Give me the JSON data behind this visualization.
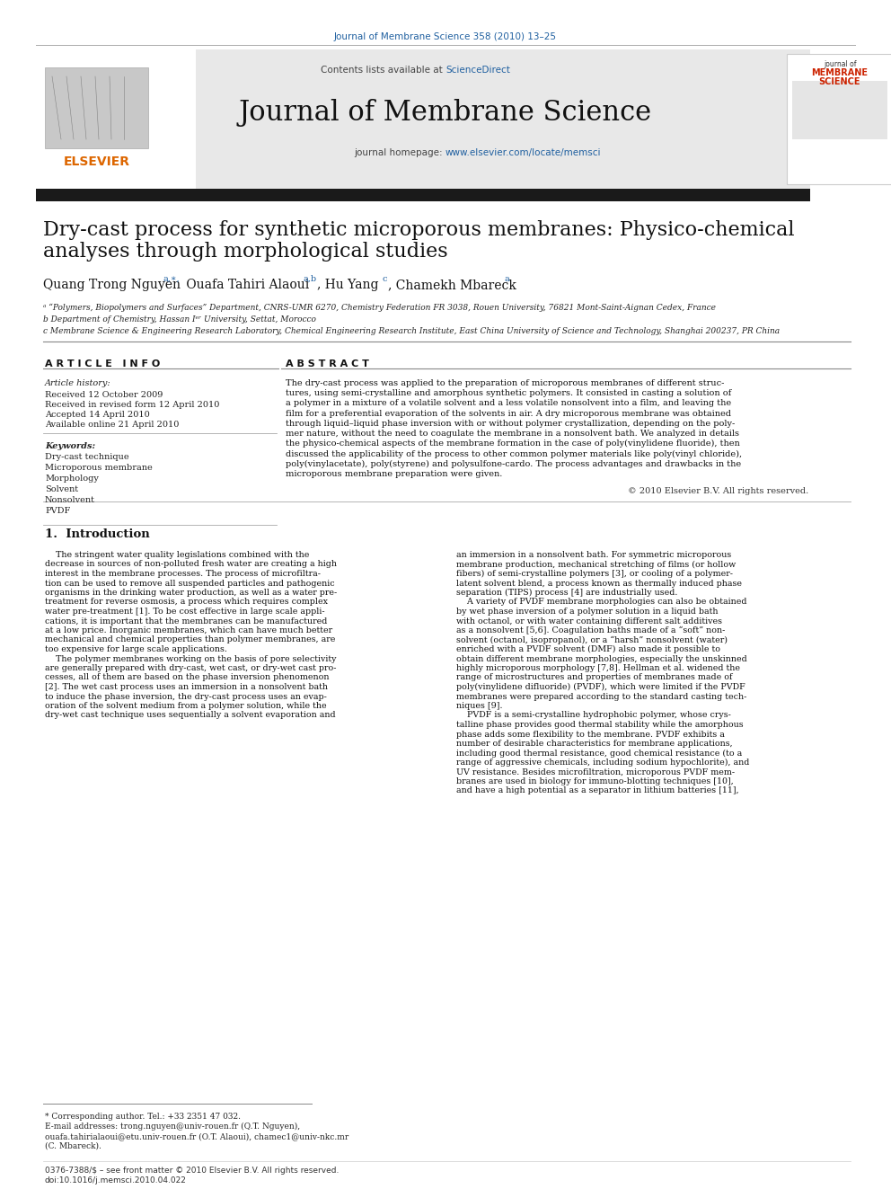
{
  "journal_citation": "Journal of Membrane Science 358 (2010) 13–25",
  "journal_name": "Journal of Membrane Science",
  "contents_text": "Contents lists available at ",
  "sciencedirect_text": "ScienceDirect",
  "homepage_text": "journal homepage: ",
  "homepage_url": "www.elsevier.com/locate/memsci",
  "paper_title_line1": "Dry-cast process for synthetic microporous membranes: Physico-chemical",
  "paper_title_line2": "analyses through morphological studies",
  "affil_a": "ᵃ “Polymers, Biopolymers and Surfaces” Department, CNRS-UMR 6270, Chemistry Federation FR 3038, Rouen University, 76821 Mont-Saint-Aignan Cedex, France",
  "affil_b": "b Department of Chemistry, Hassan Iᵉʳ University, Settat, Morocco",
  "affil_c": "c Membrane Science & Engineering Research Laboratory, Chemical Engineering Research Institute, East China University of Science and Technology, Shanghai 200237, PR China",
  "article_info_title": "A R T I C L E   I N F O",
  "abstract_title": "A B S T R A C T",
  "article_history_title": "Article history:",
  "received": "Received 12 October 2009",
  "received_revised": "Received in revised form 12 April 2010",
  "accepted": "Accepted 14 April 2010",
  "available": "Available online 21 April 2010",
  "keywords_title": "Keywords:",
  "keywords": [
    "Dry-cast technique",
    "Microporous membrane",
    "Morphology",
    "Solvent",
    "Nonsolvent",
    "PVDF"
  ],
  "abstract_lines": [
    "The dry-cast process was applied to the preparation of microporous membranes of different struc-",
    "tures, using semi-crystalline and amorphous synthetic polymers. It consisted in casting a solution of",
    "a polymer in a mixture of a volatile solvent and a less volatile nonsolvent into a film, and leaving the",
    "film for a preferential evaporation of the solvents in air. A dry microporous membrane was obtained",
    "through liquid–liquid phase inversion with or without polymer crystallization, depending on the poly-",
    "mer nature, without the need to coagulate the membrane in a nonsolvent bath. We analyzed in details",
    "the physico-chemical aspects of the membrane formation in the case of poly(vinylidene fluoride), then",
    "discussed the applicability of the process to other common polymer materials like poly(vinyl chloride),",
    "poly(vinylacetate), poly(styrene) and polysulfone-cardo. The process advantages and drawbacks in the",
    "microporous membrane preparation were given."
  ],
  "copyright": "© 2010 Elsevier B.V. All rights reserved.",
  "intro_title": "1.  Introduction",
  "intro_col1_lines": [
    "    The stringent water quality legislations combined with the",
    "decrease in sources of non-polluted fresh water are creating a high",
    "interest in the membrane processes. The process of microfiltra-",
    "tion can be used to remove all suspended particles and pathogenic",
    "organisms in the drinking water production, as well as a water pre-",
    "treatment for reverse osmosis, a process which requires complex",
    "water pre-treatment [1]. To be cost effective in large scale appli-",
    "cations, it is important that the membranes can be manufactured",
    "at a low price. Inorganic membranes, which can have much better",
    "mechanical and chemical properties than polymer membranes, are",
    "too expensive for large scale applications.",
    "    The polymer membranes working on the basis of pore selectivity",
    "are generally prepared with dry-cast, wet cast, or dry-wet cast pro-",
    "cesses, all of them are based on the phase inversion phenomenon",
    "[2]. The wet cast process uses an immersion in a nonsolvent bath",
    "to induce the phase inversion, the dry-cast process uses an evap-",
    "oration of the solvent medium from a polymer solution, while the",
    "dry-wet cast technique uses sequentially a solvent evaporation and"
  ],
  "intro_col2_lines": [
    "an immersion in a nonsolvent bath. For symmetric microporous",
    "membrane production, mechanical stretching of films (or hollow",
    "fibers) of semi-crystalline polymers [3], or cooling of a polymer-",
    "latent solvent blend, a process known as thermally induced phase",
    "separation (TIPS) process [4] are industrially used.",
    "    A variety of PVDF membrane morphologies can also be obtained",
    "by wet phase inversion of a polymer solution in a liquid bath",
    "with octanol, or with water containing different salt additives",
    "as a nonsolvent [5,6]. Coagulation baths made of a “soft” non-",
    "solvent (octanol, isopropanol), or a “harsh” nonsolvent (water)",
    "enriched with a PVDF solvent (DMF) also made it possible to",
    "obtain different membrane morphologies, especially the unskinned",
    "highly microporous morphology [7,8]. Hellman et al. widened the",
    "range of microstructures and properties of membranes made of",
    "poly(vinylidene difluoride) (PVDF), which were limited if the PVDF",
    "membranes were prepared according to the standard casting tech-",
    "niques [9].",
    "    PVDF is a semi-crystalline hydrophobic polymer, whose crys-",
    "talline phase provides good thermal stability while the amorphous",
    "phase adds some flexibility to the membrane. PVDF exhibits a",
    "number of desirable characteristics for membrane applications,",
    "including good thermal resistance, good chemical resistance (to a",
    "range of aggressive chemicals, including sodium hypochlorite), and",
    "UV resistance. Besides microfiltration, microporous PVDF mem-",
    "branes are used in biology for immuno-blotting techniques [10],",
    "and have a high potential as a separator in lithium batteries [11],"
  ],
  "footnote_star": "* Corresponding author. Tel.: +33 2351 47 032.",
  "footnote_email": "E-mail addresses: trong.nguyen@univ-rouen.fr (Q.T. Nguyen),",
  "footnote_email2": "ouafa.tahirialaoui@etu.univ-rouen.fr (O.T. Alaoui), chamec1@univ-nkc.mr",
  "footnote_email3": "(C. Mbareck).",
  "footer_issn": "0376-7388/$ – see front matter © 2010 Elsevier B.V. All rights reserved.",
  "footer_doi": "doi:10.1016/j.memsci.2010.04.022",
  "bg_color": "#ffffff",
  "section_bg": "#e8e8e8",
  "dark_bar_color": "#1a1a1a",
  "link_color": "#2060a0",
  "elsevier_orange": "#dd6600"
}
